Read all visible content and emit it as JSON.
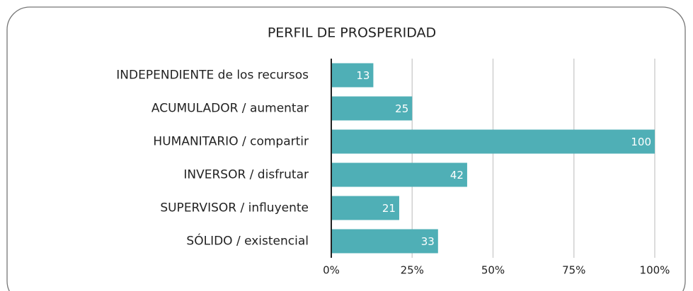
{
  "chart_data": {
    "type": "bar",
    "orientation": "horizontal",
    "title": "PERFIL DE PROSPERIDAD",
    "categories": [
      "INDEPENDIENTE de los recursos",
      "ACUMULADOR / aumentar",
      "HUMANITARIO / compartir",
      "INVERSOR / disfrutar",
      "SUPERVISOR / influyente",
      "SÓLIDO / existencial"
    ],
    "values": [
      13,
      25,
      100,
      42,
      21,
      33
    ],
    "color": "#4fafb6",
    "xlim": [
      0,
      100
    ],
    "xticks": [
      {
        "value": 0,
        "label": "0%"
      },
      {
        "value": 25,
        "label": "25%"
      },
      {
        "value": 50,
        "label": "50%"
      },
      {
        "value": 75,
        "label": "75%"
      },
      {
        "value": 100,
        "label": "100%"
      }
    ],
    "grid": true
  }
}
